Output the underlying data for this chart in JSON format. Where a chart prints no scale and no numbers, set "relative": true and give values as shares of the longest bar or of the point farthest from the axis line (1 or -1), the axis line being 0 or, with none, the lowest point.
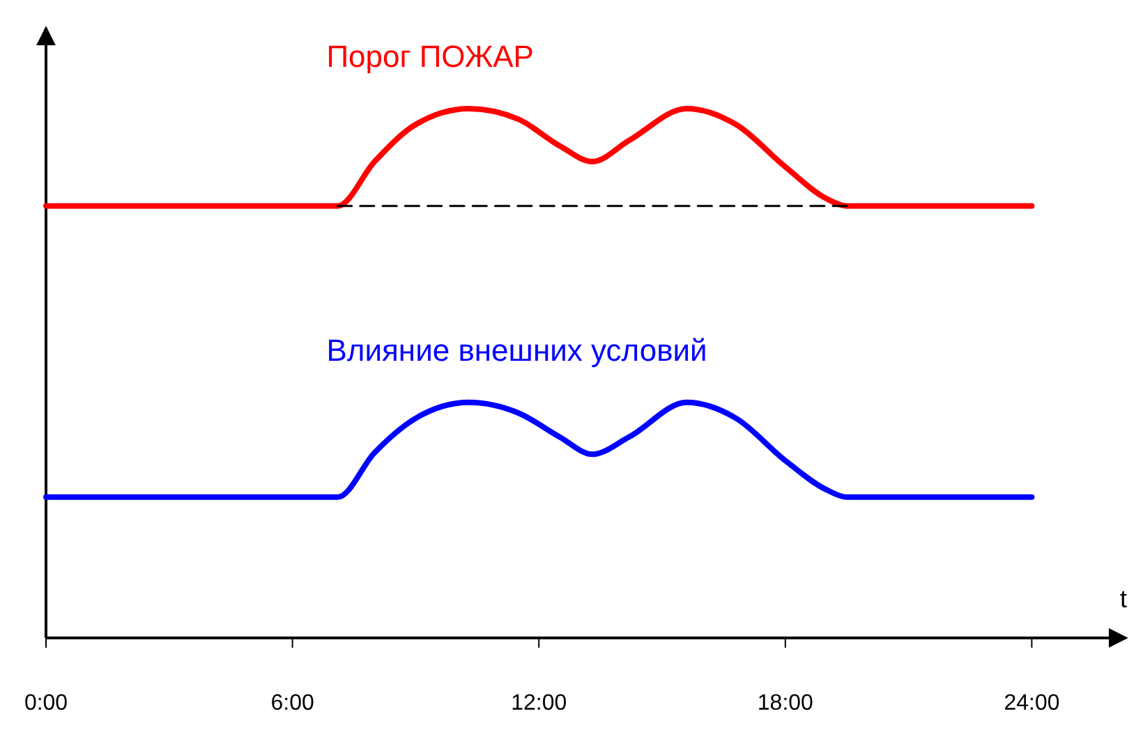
{
  "chart_data": {
    "type": "line",
    "relative": true,
    "xlabel": "t",
    "xlim": [
      0,
      26.3
    ],
    "xticks": [
      {
        "value": 0,
        "label": "0:00"
      },
      {
        "value": 6,
        "label": "6:00"
      },
      {
        "value": 12,
        "label": "12:00"
      },
      {
        "value": 18,
        "label": "18:00"
      },
      {
        "value": 24,
        "label": "24:00"
      }
    ],
    "tick_labels": "x",
    "marker": "none",
    "series": [
      {
        "name": "Порог ПОЖАР",
        "color": "#ff0000",
        "x": [
          0,
          7.1,
          8.0,
          9.0,
          10.3,
          11.5,
          12.5,
          13.3,
          14.2,
          15.6,
          16.8,
          18.0,
          19.0,
          19.5,
          24
        ],
        "values": [
          0.816,
          0.816,
          0.9,
          0.97,
          1,
          0.98,
          0.93,
          0.9,
          0.94,
          1,
          0.97,
          0.89,
          0.83,
          0.816,
          0.816
        ]
      },
      {
        "color": "#000000",
        "line_style": "dashed",
        "x": [
          7.1,
          19.5
        ],
        "values": [
          0.816,
          0.816
        ]
      },
      {
        "name": "Влияние внешних условий",
        "color": "#0000ff",
        "x": [
          0,
          7.1,
          8.0,
          9.0,
          10.3,
          11.5,
          12.5,
          13.3,
          14.2,
          15.6,
          16.8,
          18.0,
          19.0,
          19.5,
          24
        ],
        "values": [
          0.266,
          0.266,
          0.35,
          0.415,
          0.445,
          0.425,
          0.38,
          0.347,
          0.38,
          0.445,
          0.415,
          0.335,
          0.28,
          0.266,
          0.266
        ]
      }
    ]
  }
}
